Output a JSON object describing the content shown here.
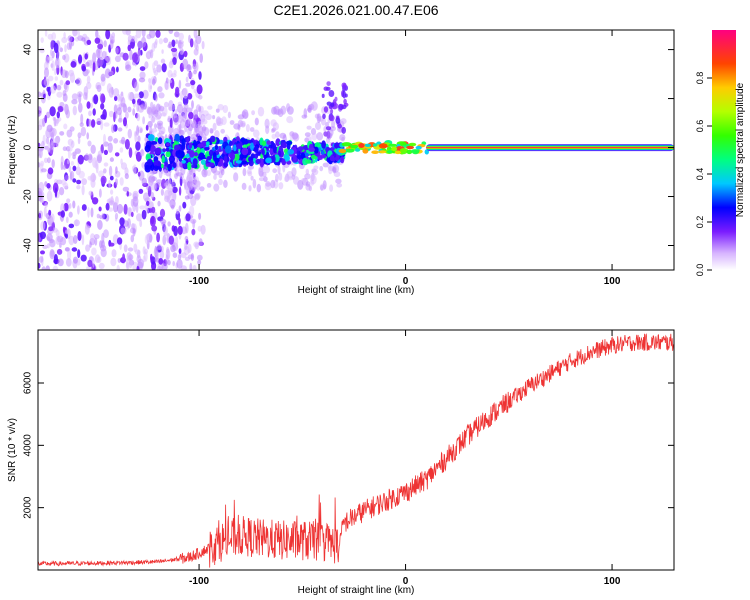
{
  "title": "C2E1.2026.021.00.47.E06",
  "chart_data": [
    {
      "type": "heatmap",
      "xlabel": "Height of straight line (km)",
      "ylabel": "Frequency (Hz)",
      "xlim": [
        -178,
        130
      ],
      "ylim": [
        -50,
        48
      ],
      "xticks": [
        -100,
        0,
        100
      ],
      "xtick_labels": [
        "-100",
        "0",
        "100"
      ],
      "yticks": [
        -40,
        -20,
        0,
        20,
        40
      ],
      "ytick_labels": [
        "-40",
        "-20",
        "0",
        "20",
        "40"
      ],
      "colorbar": {
        "label": "Normalized spectral amplitude",
        "range": [
          0,
          1
        ],
        "ticks": [
          0,
          0.2,
          0.4,
          0.6,
          0.8
        ],
        "tick_labels": [
          "0.0",
          "0.2",
          "0.4",
          "0.6",
          "0.8"
        ]
      },
      "features": {
        "noise_region_x": [
          -178,
          -100
        ],
        "cluster_region_x": [
          -125,
          -30
        ],
        "strong_line_x": [
          10,
          130
        ],
        "strong_line_freq": 0,
        "strong_line_amplitude": 1.0
      }
    },
    {
      "type": "line",
      "xlabel": "Height of straight line (km)",
      "ylabel": "SNR (10 * v/v)",
      "xlim": [
        -178,
        130
      ],
      "ylim": [
        0,
        7700
      ],
      "xticks": [
        -100,
        0,
        100
      ],
      "xtick_labels": [
        "-100",
        "0",
        "100"
      ],
      "yticks": [
        2000,
        4000,
        6000
      ],
      "ytick_labels": [
        "2000",
        "4000",
        "6000"
      ],
      "series": [
        {
          "name": "SNR",
          "color": "#ee3333",
          "x": [
            -178,
            -160,
            -140,
            -120,
            -105,
            -95,
            -90,
            -80,
            -70,
            -60,
            -50,
            -40,
            -32,
            -30,
            -20,
            -10,
            0,
            10,
            20,
            30,
            40,
            50,
            60,
            70,
            80,
            90,
            100,
            110,
            120,
            130
          ],
          "y": [
            200,
            210,
            230,
            260,
            400,
            700,
            900,
            1100,
            1000,
            950,
            950,
            900,
            800,
            1500,
            1900,
            2200,
            2500,
            2900,
            3600,
            4300,
            4900,
            5400,
            5900,
            6300,
            6700,
            7000,
            7200,
            7300,
            7300,
            7300
          ]
        }
      ]
    }
  ]
}
